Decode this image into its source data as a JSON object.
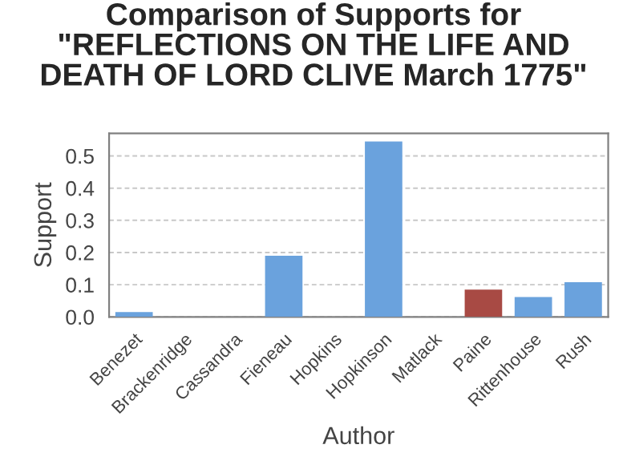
{
  "chart_data": {
    "type": "bar",
    "title": "Comparison of Supports for\n\"REFLECTIONS ON THE LIFE AND\nDEATH OF LORD CLIVE March 1775\"",
    "xlabel": "Author",
    "ylabel": "Support",
    "categories": [
      "Benezet",
      "Brackenridge",
      "Cassandra",
      "Fieneau",
      "Hopkins",
      "Hopkinson",
      "Matlack",
      "Paine",
      "Rittenhouse",
      "Rush"
    ],
    "values": [
      0.015,
      0,
      0,
      0.19,
      0,
      0.545,
      0,
      0.085,
      0.062,
      0.108
    ],
    "colors": [
      "#6aa2dd",
      "#6aa2dd",
      "#6aa2dd",
      "#6aa2dd",
      "#6aa2dd",
      "#6aa2dd",
      "#6aa2dd",
      "#a84a44",
      "#6aa2dd",
      "#6aa2dd"
    ],
    "ylim": [
      0,
      0.57
    ],
    "yticks": [
      {
        "value": 0,
        "label": "0.0"
      },
      {
        "value": 0.1,
        "label": "0.1"
      },
      {
        "value": 0.2,
        "label": "0.2"
      },
      {
        "value": 0.3,
        "label": "0.3"
      },
      {
        "value": 0.4,
        "label": "0.4"
      },
      {
        "value": 0.5,
        "label": "0.5"
      }
    ],
    "grid": "y"
  }
}
